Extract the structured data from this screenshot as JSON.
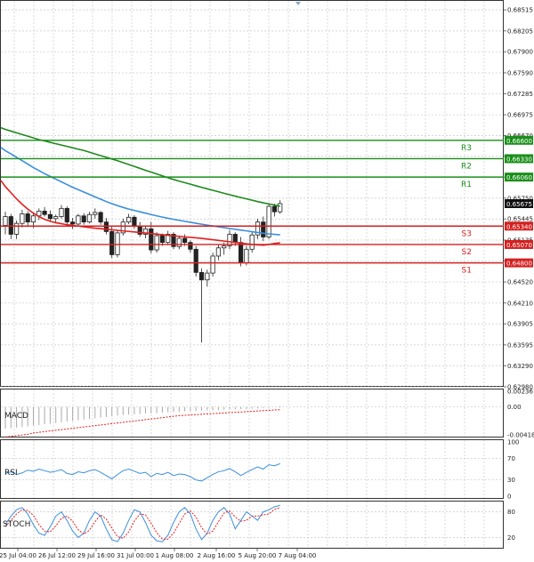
{
  "chart_data": {
    "type": "candlestick",
    "x_labels": [
      "25 Jul 04:00",
      "26 Jul 12:00",
      "29 Jul 16:00",
      "31 Jul 00:00",
      "1 Aug 08:00",
      "2 Aug 16:00",
      "5 Aug 20:00",
      "7 Aug 04:00"
    ],
    "y_ticks": [
      "0.68515",
      "0.68205",
      "0.67900",
      "0.67590",
      "0.67285",
      "0.66975",
      "0.66670",
      "0.66365",
      "0.66060",
      "0.65750",
      "0.65445",
      "0.65135",
      "0.64830",
      "0.64520",
      "0.64210",
      "0.63905",
      "0.63595",
      "0.63290",
      "0.62980"
    ],
    "ylim": [
      0.6298,
      0.6866
    ],
    "current_price": "0.65675",
    "levels": [
      {
        "name": "R3",
        "value": 0.666,
        "label": "0.66600",
        "color": "#1a8f1a"
      },
      {
        "name": "R2",
        "value": 0.6633,
        "label": "0.66330",
        "color": "#1a8f1a"
      },
      {
        "name": "R1",
        "value": 0.6606,
        "label": "0.66060",
        "color": "#1a8f1a"
      },
      {
        "name": "S3",
        "value": 0.6534,
        "label": "0.65340",
        "color": "#d42020"
      },
      {
        "name": "S2",
        "value": 0.6507,
        "label": "0.65070",
        "color": "#d42020"
      },
      {
        "name": "S1",
        "value": 0.648,
        "label": "0.64800",
        "color": "#d42020"
      }
    ],
    "candles": [
      [
        0.6535,
        0.6555,
        0.6522,
        0.6548
      ],
      [
        0.6548,
        0.6552,
        0.6515,
        0.6522
      ],
      [
        0.6522,
        0.6542,
        0.6515,
        0.6538
      ],
      [
        0.6538,
        0.6558,
        0.6532,
        0.6552
      ],
      [
        0.6552,
        0.6556,
        0.6535,
        0.654
      ],
      [
        0.654,
        0.6553,
        0.6531,
        0.6549
      ],
      [
        0.6549,
        0.656,
        0.6543,
        0.6556
      ],
      [
        0.6556,
        0.6562,
        0.6548,
        0.6551
      ],
      [
        0.6551,
        0.6557,
        0.654,
        0.6545
      ],
      [
        0.6545,
        0.6551,
        0.6538,
        0.6548
      ],
      [
        0.6548,
        0.6565,
        0.6545,
        0.656
      ],
      [
        0.656,
        0.6563,
        0.6535,
        0.654
      ],
      [
        0.654,
        0.6546,
        0.653,
        0.6537
      ],
      [
        0.6537,
        0.6552,
        0.6535,
        0.6549
      ],
      [
        0.6549,
        0.6553,
        0.6536,
        0.654
      ],
      [
        0.654,
        0.6555,
        0.6538,
        0.6551
      ],
      [
        0.6551,
        0.656,
        0.6545,
        0.6554
      ],
      [
        0.6554,
        0.6556,
        0.6536,
        0.654
      ],
      [
        0.654,
        0.6546,
        0.6522,
        0.6526
      ],
      [
        0.6526,
        0.6533,
        0.6487,
        0.6492
      ],
      [
        0.6492,
        0.6528,
        0.6488,
        0.6524
      ],
      [
        0.6524,
        0.6545,
        0.652,
        0.654
      ],
      [
        0.654,
        0.6552,
        0.6537,
        0.6547
      ],
      [
        0.6547,
        0.655,
        0.653,
        0.6534
      ],
      [
        0.6534,
        0.654,
        0.6518,
        0.6522
      ],
      [
        0.6522,
        0.6535,
        0.6516,
        0.653
      ],
      [
        0.653,
        0.654,
        0.6494,
        0.6499
      ],
      [
        0.6499,
        0.6525,
        0.6495,
        0.652
      ],
      [
        0.652,
        0.6523,
        0.6505,
        0.651
      ],
      [
        0.651,
        0.6527,
        0.6506,
        0.6522
      ],
      [
        0.6522,
        0.6525,
        0.65,
        0.6504
      ],
      [
        0.6504,
        0.652,
        0.65,
        0.6516
      ],
      [
        0.6516,
        0.6522,
        0.6505,
        0.651
      ],
      [
        0.651,
        0.6513,
        0.6495,
        0.65
      ],
      [
        0.65,
        0.6505,
        0.646,
        0.6466
      ],
      [
        0.6466,
        0.6472,
        0.6363,
        0.6455
      ],
      [
        0.6455,
        0.647,
        0.6445,
        0.6465
      ],
      [
        0.6465,
        0.6495,
        0.646,
        0.649
      ],
      [
        0.649,
        0.6507,
        0.6484,
        0.6502
      ],
      [
        0.6502,
        0.651,
        0.6492,
        0.6505
      ],
      [
        0.6505,
        0.6528,
        0.65,
        0.6522
      ],
      [
        0.6522,
        0.6525,
        0.6505,
        0.651
      ],
      [
        0.651,
        0.6518,
        0.6475,
        0.648
      ],
      [
        0.648,
        0.6505,
        0.6476,
        0.65
      ],
      [
        0.65,
        0.6525,
        0.6495,
        0.6521
      ],
      [
        0.6521,
        0.6545,
        0.6515,
        0.654
      ],
      [
        0.654,
        0.6548,
        0.6512,
        0.6518
      ],
      [
        0.6518,
        0.6568,
        0.6515,
        0.6563
      ],
      [
        0.6563,
        0.6567,
        0.6548,
        0.6555
      ],
      [
        0.6555,
        0.6572,
        0.6552,
        0.6567
      ]
    ],
    "ma_green": [
      0.6676,
      0.66735,
      0.6671,
      0.66685,
      0.6666,
      0.66635,
      0.6661,
      0.6659,
      0.6657,
      0.6655,
      0.6653,
      0.6651,
      0.6649,
      0.6647,
      0.6645,
      0.66425,
      0.664,
      0.66375,
      0.6635,
      0.66325,
      0.663,
      0.66272,
      0.66244,
      0.66216,
      0.66188,
      0.6616,
      0.66133,
      0.66106,
      0.66078,
      0.6605,
      0.66025,
      0.66,
      0.65978,
      0.65955,
      0.65932,
      0.6591,
      0.65888,
      0.65866,
      0.65844,
      0.65822,
      0.658,
      0.6578,
      0.6576,
      0.6574,
      0.6572,
      0.657,
      0.65682,
      0.65665,
      0.6565,
      0.6563
    ],
    "ma_blue": [
      0.66448,
      0.664,
      0.6635,
      0.663,
      0.6625,
      0.662,
      0.66155,
      0.6611,
      0.6607,
      0.6603,
      0.6599,
      0.6595,
      0.6591,
      0.65875,
      0.6584,
      0.65805,
      0.6577,
      0.65735,
      0.657,
      0.6567,
      0.6564,
      0.65615,
      0.6559,
      0.6557,
      0.6555,
      0.6553,
      0.6551,
      0.6549,
      0.65472,
      0.65455,
      0.6544,
      0.65425,
      0.6541,
      0.65396,
      0.65382,
      0.65368,
      0.65355,
      0.65343,
      0.6533,
      0.65318,
      0.65305,
      0.65293,
      0.65281,
      0.6527,
      0.65258,
      0.65246,
      0.65235,
      0.65226,
      0.65219,
      0.65212
    ],
    "ma_red": [
      0.6592,
      0.6583,
      0.6574,
      0.6566,
      0.6559,
      0.6553,
      0.6548,
      0.6544,
      0.6541,
      0.6539,
      0.65375,
      0.6536,
      0.6535,
      0.6534,
      0.6533,
      0.6532,
      0.6531,
      0.65302,
      0.65294,
      0.65286,
      0.65278,
      0.6527,
      0.65262,
      0.65254,
      0.65246,
      0.65238,
      0.6523,
      0.65222,
      0.65214,
      0.65206,
      0.65198,
      0.6519,
      0.65182,
      0.65174,
      0.65168,
      0.6516,
      0.6515,
      0.6514,
      0.6513,
      0.6512,
      0.6511,
      0.651,
      0.6509,
      0.6508,
      0.6507,
      0.65065,
      0.6506,
      0.6507,
      0.65085,
      0.65095
    ],
    "macd": {
      "label": "MACD",
      "y_ticks": [
        "0.002361",
        "0.00",
        "-0.004182"
      ],
      "ylim": [
        -0.004182,
        0.002361
      ],
      "hist": [
        -0.00325,
        -0.0032,
        -0.0031,
        -0.003,
        -0.0029,
        -0.0028,
        -0.0027,
        -0.0026,
        -0.0025,
        -0.0024,
        -0.0023,
        -0.0022,
        -0.0021,
        -0.002,
        -0.0019,
        -0.0018,
        -0.0017,
        -0.0016,
        -0.0015,
        -0.0014,
        -0.0013,
        -0.0012,
        -0.00115,
        -0.0011,
        -0.00105,
        -0.001,
        -0.00095,
        -0.0009,
        -0.00085,
        -0.0008,
        -0.00075,
        -0.0007,
        -0.00065,
        -0.0006,
        -0.0006,
        -0.00055,
        -0.0005,
        -0.0005,
        -0.00045,
        -0.0004,
        -0.0004,
        -0.00035,
        -0.0003,
        -0.0003,
        -0.00025,
        -0.0002,
        -0.00015,
        -0.0001,
        0.0,
        0.00015
      ],
      "signal": [
        -0.0045,
        -0.0044,
        -0.0043,
        -0.0042,
        -0.0041,
        -0.0039,
        -0.0038,
        -0.0037,
        -0.0036,
        -0.0035,
        -0.0034,
        -0.0033,
        -0.0032,
        -0.0031,
        -0.003,
        -0.0029,
        -0.0028,
        -0.0027,
        -0.0026,
        -0.0025,
        -0.0024,
        -0.0023,
        -0.0022,
        -0.0021,
        -0.002,
        -0.0019,
        -0.0018,
        -0.0017,
        -0.0016,
        -0.0015,
        -0.0014,
        -0.0013,
        -0.00125,
        -0.0012,
        -0.00115,
        -0.0011,
        -0.00105,
        -0.001,
        -0.00095,
        -0.0009,
        -0.00085,
        -0.0008,
        -0.00075,
        -0.0007,
        -0.00065,
        -0.0006,
        -0.00055,
        -0.0005,
        -0.00045,
        -0.0004
      ]
    },
    "rsi": {
      "label": "RSI",
      "y_ticks": [
        "100",
        "70",
        "30",
        "0"
      ],
      "ylim": [
        0,
        100
      ],
      "values": [
        42,
        45,
        40,
        43,
        48,
        46,
        50,
        47,
        44,
        46,
        49,
        42,
        40,
        45,
        43,
        47,
        49,
        44,
        38,
        32,
        40,
        47,
        50,
        46,
        42,
        44,
        36,
        42,
        40,
        44,
        38,
        41,
        40,
        36,
        30,
        28,
        34,
        40,
        45,
        47,
        51,
        45,
        38,
        44,
        49,
        54,
        50,
        58,
        56,
        60
      ]
    },
    "stoch": {
      "label": "STOCH",
      "y_ticks": [
        "80",
        "20"
      ],
      "ylim": [
        0,
        100
      ],
      "k": [
        50,
        70,
        85,
        90,
        75,
        50,
        30,
        25,
        45,
        70,
        80,
        60,
        35,
        20,
        30,
        60,
        80,
        70,
        40,
        15,
        10,
        30,
        60,
        85,
        80,
        55,
        25,
        12,
        10,
        25,
        55,
        80,
        90,
        75,
        40,
        15,
        30,
        60,
        80,
        90,
        75,
        40,
        60,
        80,
        70,
        60,
        80,
        85,
        92,
        95
      ],
      "d": [
        45,
        60,
        75,
        85,
        83,
        72,
        50,
        35,
        33,
        47,
        65,
        70,
        58,
        38,
        28,
        37,
        57,
        73,
        63,
        42,
        22,
        18,
        33,
        58,
        75,
        73,
        53,
        31,
        16,
        16,
        30,
        53,
        75,
        82,
        68,
        43,
        28,
        35,
        57,
        77,
        82,
        68,
        58,
        60,
        70,
        70,
        73,
        75,
        86,
        90
      ]
    }
  }
}
